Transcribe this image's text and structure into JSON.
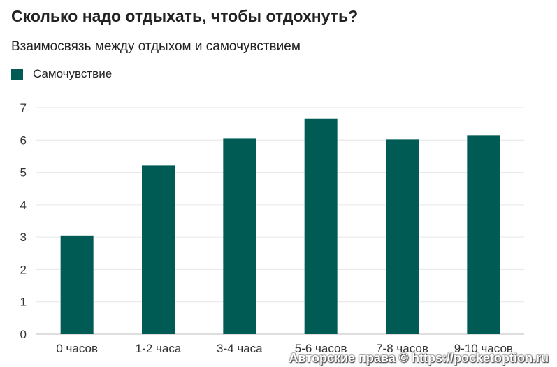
{
  "chart_data": {
    "type": "bar",
    "title": "Сколько надо отдыхать, чтобы отдохнуть?",
    "subtitle": "Взаимосвязь между отдыхом и самочувствием",
    "categories": [
      "0 часов",
      "1-2 часа",
      "3-4 часа",
      "5-6 часов",
      "7-8 часов",
      "9-10 часов"
    ],
    "series": [
      {
        "name": "Самочувствие",
        "values": [
          3.05,
          5.22,
          6.04,
          6.66,
          6.02,
          6.15
        ]
      }
    ],
    "ylim": [
      0,
      7
    ],
    "yticks": [
      0,
      1,
      2,
      3,
      4,
      5,
      6,
      7
    ],
    "grid": true,
    "legend": "top-left",
    "bar_color": "#005b55"
  },
  "watermark": "Авторские права © https://pocketoption.ru"
}
